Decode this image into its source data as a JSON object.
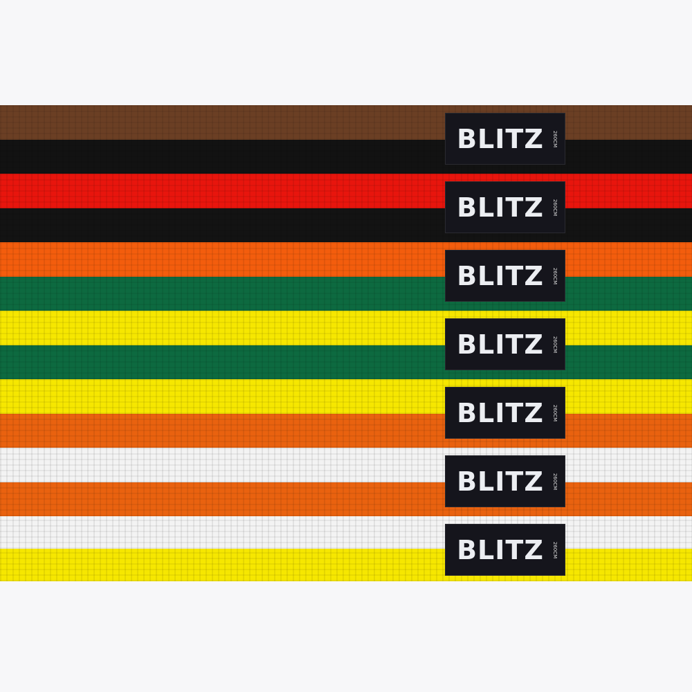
{
  "belts": [
    {
      "top": "#6b3f24",
      "bottom": "#121212",
      "label": "BLITZ",
      "size": "260CM"
    },
    {
      "top": "#e8150d",
      "bottom": "#131313",
      "label": "BLITZ",
      "size": "260CM"
    },
    {
      "top": "#f35d0d",
      "bottom": "#0d6a40",
      "label": "BLITZ",
      "size": "260CM"
    },
    {
      "top": "#f6e700",
      "bottom": "#0d6a40",
      "label": "BLITZ",
      "size": "260CM"
    },
    {
      "top": "#f6e700",
      "bottom": "#e9620f",
      "label": "BLITZ",
      "size": "260CM"
    },
    {
      "top": "#f3f3f3",
      "bottom": "#e9620f",
      "label": "BLITZ",
      "size": "260CM"
    },
    {
      "top": "#f3f3f3",
      "bottom": "#f6e700",
      "label": "BLITZ",
      "size": "260CM"
    }
  ]
}
